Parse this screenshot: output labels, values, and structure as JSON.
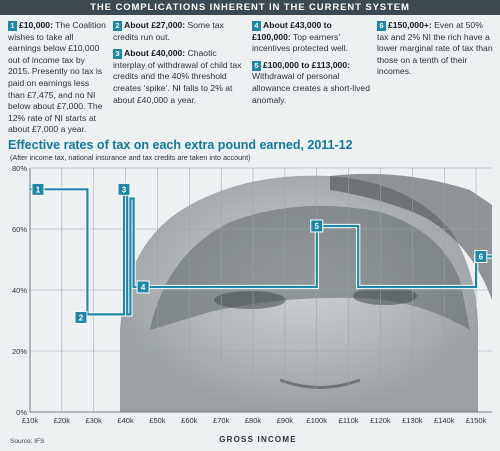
{
  "banner": "THE COMPLICATIONS INHERENT IN THE CURRENT SYSTEM",
  "notes": [
    {
      "num": "1",
      "lead": "£10,000:",
      "text": "The Coalition wishes to take all earnings below £10,000 out of income tax by 2015. Presently no tax is paid on earnings less than £7,475, and no NI below about £7,000. The 12% rate of NI starts at about £7,000 a year."
    },
    {
      "num": "2",
      "lead": "About £27,000:",
      "text": "Some tax credits run out."
    },
    {
      "num": "3",
      "lead": "About £40,000:",
      "text": "Chaotic interplay of withdrawal of child tax credits and the 40% threshold creates ‘spike’. NI falls to 2% at about £40,000 a year."
    },
    {
      "num": "4",
      "lead": "About £43,000 to £100,000:",
      "text": "Top earners’ incentives protected well."
    },
    {
      "num": "5",
      "lead": "£100,000 to £113,000:",
      "text": "Withdrawal of personal allowance creates a short-lived anomaly."
    },
    {
      "num": "6",
      "lead": "£150,000+:",
      "text": "Even at 50% tax and 2% NI the rich have a lower marginal rate of tax than those on a tenth of their incomes."
    }
  ],
  "chart_data": {
    "type": "line",
    "title": "Effective rates of tax on each extra pound earned, 2011-12",
    "subtitle": "(After income tax, national insurance and tax credits are taken into account)",
    "xlabel": "GROSS INCOME",
    "ylabel": "",
    "xlim": [
      10000,
      155000
    ],
    "ylim": [
      0,
      80
    ],
    "x_ticks": [
      10000,
      20000,
      30000,
      40000,
      50000,
      60000,
      70000,
      80000,
      90000,
      100000,
      110000,
      120000,
      130000,
      140000,
      150000
    ],
    "x_tick_labels": [
      "£10k",
      "£20k",
      "£30k",
      "£40k",
      "£50k",
      "£60k",
      "£70k",
      "£80k",
      "£90k",
      "£100k",
      "£110k",
      "£120k",
      "£130k",
      "£140k",
      "£150k"
    ],
    "y_ticks": [
      0,
      20,
      40,
      60,
      80
    ],
    "y_tick_labels": [
      "0%",
      "20%",
      "40%",
      "60%",
      "80%"
    ],
    "grid": true,
    "series": [
      {
        "color": "#1e86a8",
        "x": [
          10000,
          28000,
          28000,
          39500,
          39500,
          40500,
          40500,
          41500,
          41500,
          42500,
          42500,
          100000,
          100000,
          113000,
          113000,
          150000,
          150000,
          155000
        ],
        "y": [
          73,
          73,
          32,
          32,
          73,
          73,
          32,
          32,
          70,
          70,
          41,
          41,
          61,
          61,
          41,
          41,
          51,
          51
        ]
      }
    ],
    "markers": [
      {
        "label": "1",
        "x": 12500,
        "y": 73
      },
      {
        "label": "2",
        "x": 26000,
        "y": 31
      },
      {
        "label": "3",
        "x": 39500,
        "y": 73
      },
      {
        "label": "4",
        "x": 45500,
        "y": 41
      },
      {
        "label": "5",
        "x": 100000,
        "y": 61
      },
      {
        "label": "6",
        "x": 151500,
        "y": 51
      }
    ]
  },
  "source": "Source: IFS"
}
